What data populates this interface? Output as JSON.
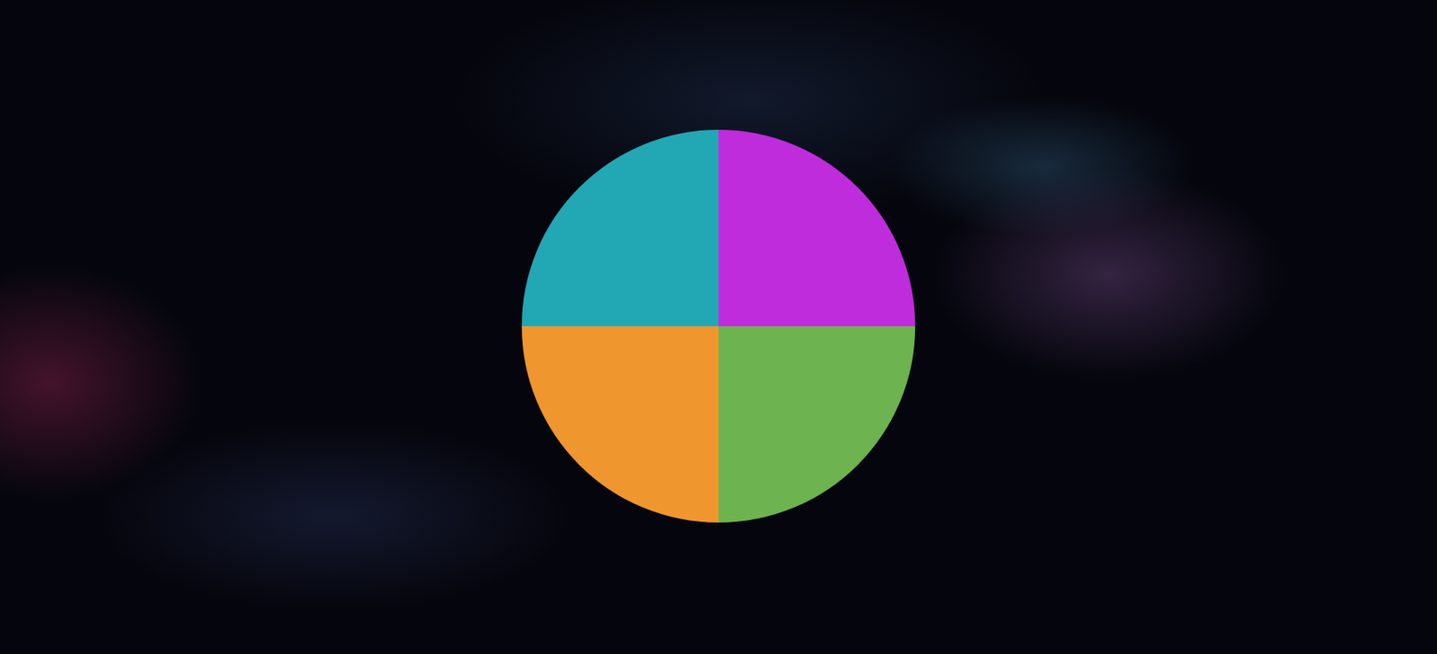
{
  "chart_data": {
    "type": "pie",
    "values": [
      25,
      25,
      25,
      25
    ],
    "colors": [
      "#bf2cdc",
      "#6db34f",
      "#ef962f",
      "#22a7b5"
    ]
  }
}
